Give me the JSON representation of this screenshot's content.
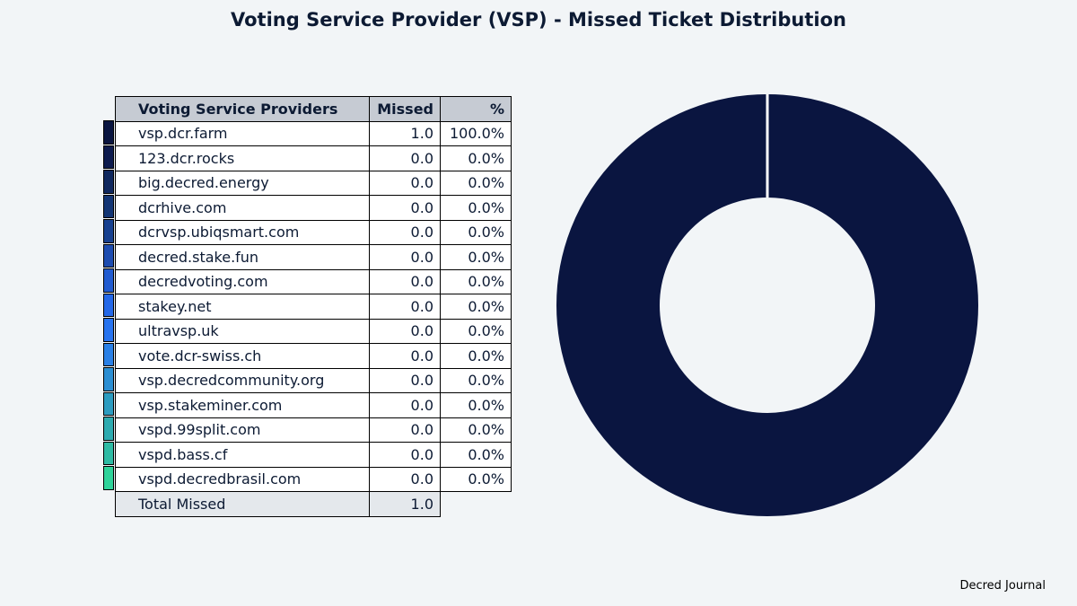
{
  "title": "Voting Service Provider (VSP) - Missed Ticket Distribution",
  "credit": "Decred Journal",
  "chart_data": {
    "type": "pie",
    "style": "donut",
    "columns": [
      "Voting Service Providers",
      "Missed",
      "%"
    ],
    "rows": [
      {
        "name": "vsp.dcr.farm",
        "missed": "1.0",
        "pct": "100.0%",
        "value": 1.0,
        "color": "#0a1540"
      },
      {
        "name": "123.dcr.rocks",
        "missed": "0.0",
        "pct": "0.0%",
        "value": 0.0,
        "color": "#0d1b4e"
      },
      {
        "name": "big.decred.energy",
        "missed": "0.0",
        "pct": "0.0%",
        "value": 0.0,
        "color": "#10285e"
      },
      {
        "name": "dcrhive.com",
        "missed": "0.0",
        "pct": "0.0%",
        "value": 0.0,
        "color": "#133574"
      },
      {
        "name": "dcrvsp.ubiqsmart.com",
        "missed": "0.0",
        "pct": "0.0%",
        "value": 0.0,
        "color": "#17408f"
      },
      {
        "name": "decred.stake.fun",
        "missed": "0.0",
        "pct": "0.0%",
        "value": 0.0,
        "color": "#1d4cb0"
      },
      {
        "name": "decredvoting.com",
        "missed": "0.0",
        "pct": "0.0%",
        "value": 0.0,
        "color": "#215bd0"
      },
      {
        "name": "stakey.net",
        "missed": "0.0",
        "pct": "0.0%",
        "value": 0.0,
        "color": "#2468e8"
      },
      {
        "name": "ultravsp.uk",
        "missed": "0.0",
        "pct": "0.0%",
        "value": 0.0,
        "color": "#2773ef"
      },
      {
        "name": "vote.dcr-swiss.ch",
        "missed": "0.0",
        "pct": "0.0%",
        "value": 0.0,
        "color": "#2a80e6"
      },
      {
        "name": "vsp.decredcommunity.org",
        "missed": "0.0",
        "pct": "0.0%",
        "value": 0.0,
        "color": "#2b8ed2"
      },
      {
        "name": "vsp.stakeminer.com",
        "missed": "0.0",
        "pct": "0.0%",
        "value": 0.0,
        "color": "#2c9cc0"
      },
      {
        "name": "vspd.99split.com",
        "missed": "0.0",
        "pct": "0.0%",
        "value": 0.0,
        "color": "#2dabb0"
      },
      {
        "name": "vspd.bass.cf",
        "missed": "0.0",
        "pct": "0.0%",
        "value": 0.0,
        "color": "#2ebba4"
      },
      {
        "name": "vspd.decredbrasil.com",
        "missed": "0.0",
        "pct": "0.0%",
        "value": 0.0,
        "color": "#2fd39a"
      }
    ],
    "total_label": "Total Missed",
    "total_value": "1.0"
  }
}
